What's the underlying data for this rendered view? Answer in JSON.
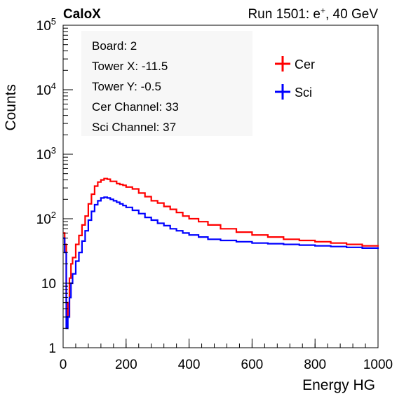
{
  "header": {
    "brand": "CaloX",
    "run_prefix": "Run 1501: e",
    "run_sup": "+",
    "run_suffix": ", 40 GeV"
  },
  "info_box": [
    "Board: 2",
    "Tower X: -11.5",
    "Tower Y: -0.5",
    "Cer Channel: 33",
    "Sci Channel: 37"
  ],
  "legend": [
    {
      "label": "Cer",
      "color": "#ff0000"
    },
    {
      "label": "Sci",
      "color": "#0000ff"
    }
  ],
  "chart_data": {
    "type": "line",
    "style": "step-histogram",
    "xlabel": "Energy HG",
    "ylabel": "Counts",
    "xlim": [
      0,
      1000
    ],
    "ylim": [
      1,
      100000
    ],
    "yscale": "log",
    "x_ticks": [
      0,
      200,
      400,
      600,
      800,
      1000
    ],
    "x_tick_labels": [
      "0",
      "200",
      "400",
      "600",
      "800",
      "1000"
    ],
    "y_ticks": [
      1,
      10,
      100,
      1000,
      10000,
      100000
    ],
    "y_tick_labels": [
      {
        "base": "1",
        "exp": ""
      },
      {
        "base": "10",
        "exp": ""
      },
      {
        "base": "10",
        "exp": "2"
      },
      {
        "base": "10",
        "exp": "3"
      },
      {
        "base": "10",
        "exp": "4"
      },
      {
        "base": "10",
        "exp": "5"
      }
    ],
    "grid": false,
    "legend_position": "top-right",
    "series": [
      {
        "name": "Cer",
        "color": "#ff0000",
        "x": [
          0,
          5,
          10,
          15,
          20,
          25,
          30,
          40,
          50,
          60,
          70,
          80,
          90,
          100,
          110,
          120,
          130,
          140,
          150,
          160,
          170,
          180,
          190,
          200,
          220,
          240,
          260,
          280,
          300,
          320,
          340,
          360,
          380,
          400,
          430,
          460,
          500,
          550,
          600,
          650,
          700,
          750,
          800,
          850,
          900,
          950,
          1000
        ],
        "y": [
          60,
          40,
          5,
          3,
          12,
          20,
          25,
          40,
          55,
          80,
          110,
          170,
          240,
          320,
          370,
          400,
          420,
          410,
          380,
          380,
          350,
          340,
          330,
          310,
          290,
          250,
          220,
          190,
          175,
          155,
          140,
          125,
          110,
          100,
          90,
          80,
          70,
          62,
          56,
          52,
          48,
          46,
          44,
          42,
          40,
          38,
          37
        ]
      },
      {
        "name": "Sci",
        "color": "#0000ff",
        "x": [
          0,
          5,
          10,
          15,
          20,
          25,
          30,
          40,
          50,
          60,
          70,
          80,
          90,
          100,
          110,
          120,
          130,
          140,
          150,
          160,
          170,
          180,
          190,
          200,
          220,
          240,
          260,
          280,
          300,
          320,
          340,
          360,
          380,
          400,
          430,
          460,
          500,
          550,
          600,
          650,
          700,
          750,
          800,
          850,
          900,
          950,
          1000
        ],
        "y": [
          50,
          30,
          2,
          3,
          6,
          10,
          14,
          22,
          30,
          45,
          65,
          95,
          130,
          165,
          190,
          210,
          215,
          210,
          200,
          190,
          180,
          170,
          160,
          150,
          135,
          120,
          105,
          95,
          85,
          78,
          70,
          65,
          60,
          56,
          52,
          48,
          46,
          44,
          42,
          41,
          40,
          39,
          38,
          37,
          36,
          35,
          34
        ]
      }
    ]
  }
}
